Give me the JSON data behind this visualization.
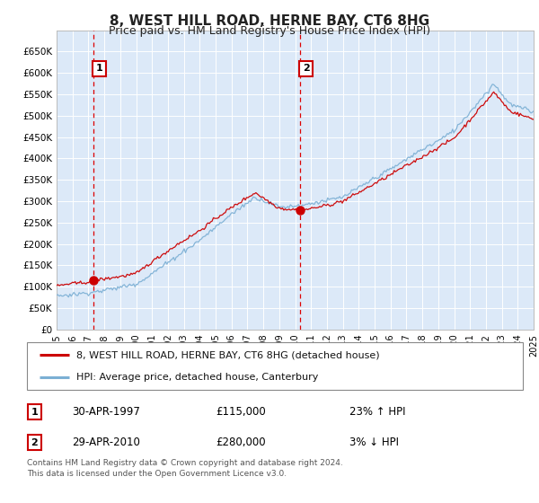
{
  "title": "8, WEST HILL ROAD, HERNE BAY, CT6 8HG",
  "subtitle": "Price paid vs. HM Land Registry's House Price Index (HPI)",
  "legend_line1": "8, WEST HILL ROAD, HERNE BAY, CT6 8HG (detached house)",
  "legend_line2": "HPI: Average price, detached house, Canterbury",
  "annotation1_date": "30-APR-1997",
  "annotation1_price": "£115,000",
  "annotation1_hpi": "23% ↑ HPI",
  "annotation1_year": 1997.33,
  "annotation1_value": 115000,
  "annotation2_date": "29-APR-2010",
  "annotation2_price": "£280,000",
  "annotation2_hpi": "3% ↓ HPI",
  "annotation2_year": 2010.33,
  "annotation2_value": 280000,
  "footer": "Contains HM Land Registry data © Crown copyright and database right 2024.\nThis data is licensed under the Open Government Licence v3.0.",
  "ylim": [
    0,
    700000
  ],
  "yticks": [
    0,
    50000,
    100000,
    150000,
    200000,
    250000,
    300000,
    350000,
    400000,
    450000,
    500000,
    550000,
    600000,
    650000
  ],
  "bg_color": "#dce9f8",
  "red_color": "#cc0000",
  "blue_color": "#7bafd4",
  "grid_color": "#ffffff",
  "title_fontsize": 11,
  "subtitle_fontsize": 9
}
